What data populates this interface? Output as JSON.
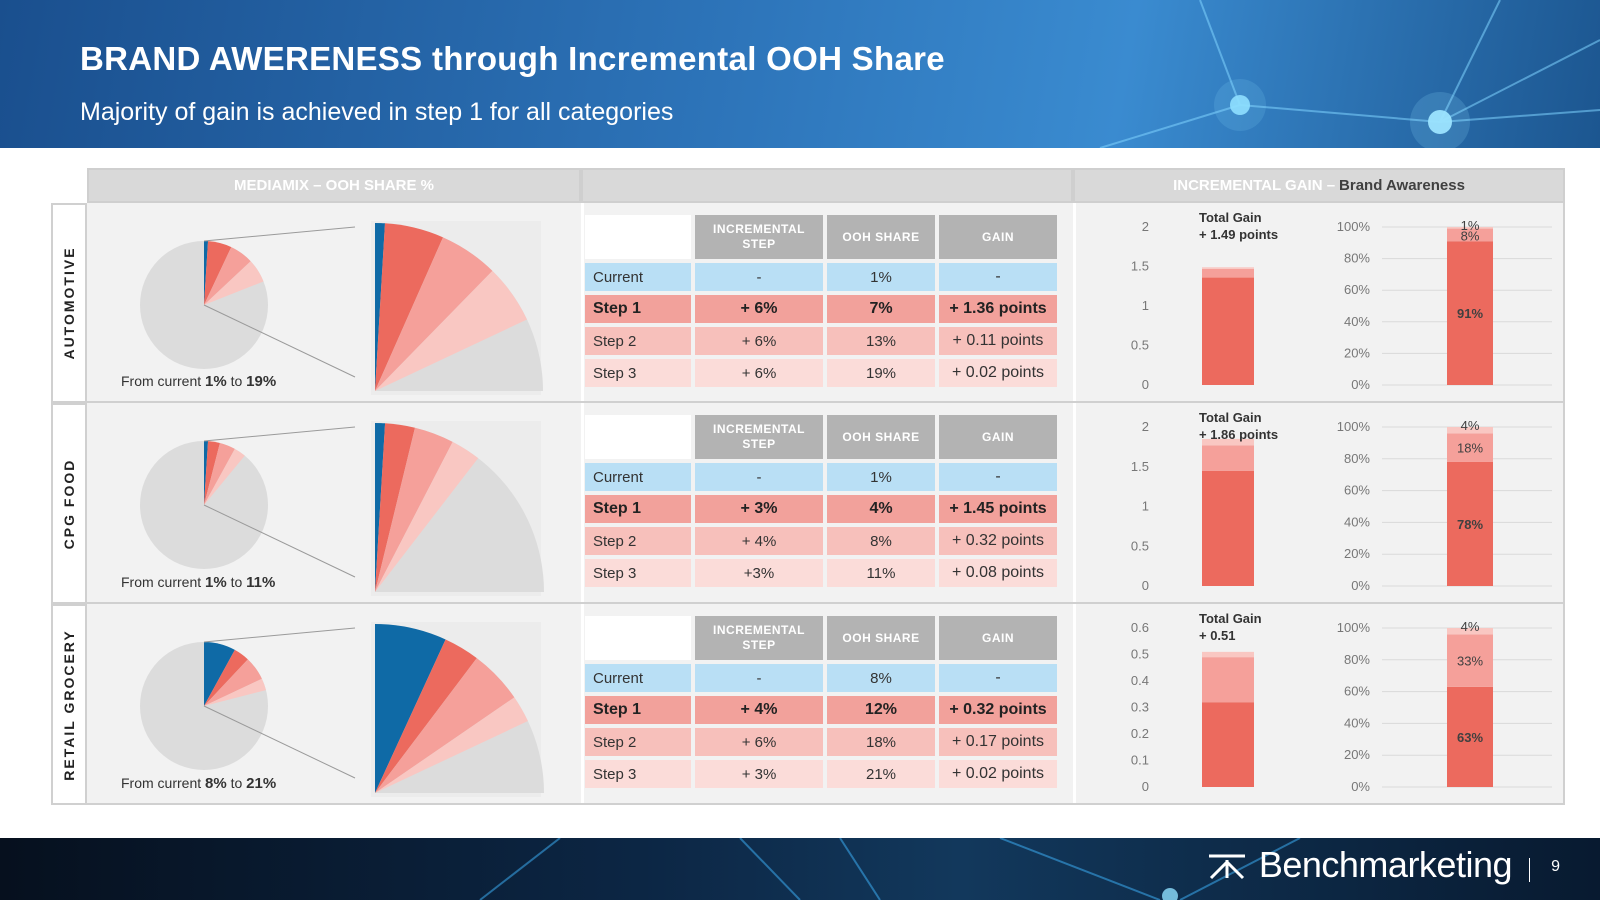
{
  "header": {
    "title": "BRAND AWERENESS through Incremental OOH Share",
    "subtitle": "Majority of gain is achieved in step 1 for all categories"
  },
  "columns": {
    "mediamix": "MEDIAMIX – OOH SHARE %",
    "gain_prefix": "INCREMENTAL GAIN –",
    "gain_suffix": "Brand Awareness"
  },
  "table_headers": [
    "INCREMENTAL STEP",
    "OOH SHARE",
    "GAIN"
  ],
  "colors": {
    "blue": "#0f6aa6",
    "red1": "#ec6a5e",
    "red2": "#f5a09a",
    "red3": "#f9c7c2",
    "gray": "#dcdcdc"
  },
  "categories": [
    {
      "label": "AUTOMOTIVE",
      "caption_pre": "From current",
      "caption_from": "1%",
      "caption_mid": "to",
      "caption_to": "19%",
      "pie_shares": [
        1,
        6,
        6,
        6
      ],
      "rows": [
        {
          "step": "Current",
          "inc": "-",
          "share": "1%",
          "gain": "-"
        },
        {
          "step": "Step 1",
          "inc": "+ 6%",
          "share": "7%",
          "gain": "+ 1.36 points"
        },
        {
          "step": "Step 2",
          "inc": "+ 6%",
          "share": "13%",
          "gain": "+ 0.11 points"
        },
        {
          "step": "Step 3",
          "inc": "+ 6%",
          "share": "19%",
          "gain": "+ 0.02 points"
        }
      ],
      "total_label": "Total Gain",
      "total_value": "+ 1.49 points",
      "chart_data": {
        "type": "bar",
        "stacked_absolute": {
          "categories": [
            "Total"
          ],
          "ylim": [
            0,
            2
          ],
          "yticks": [
            "0",
            "0.5",
            "1",
            "1.5",
            "2"
          ],
          "series": [
            {
              "values": [
                1.36
              ]
            },
            {
              "values": [
                0.11
              ]
            },
            {
              "values": [
                0.02
              ]
            }
          ]
        },
        "stacked_percent": {
          "categories": [
            "Total"
          ],
          "ylim": [
            0,
            100
          ],
          "yticks": [
            "0%",
            "20%",
            "40%",
            "60%",
            "80%",
            "100%"
          ],
          "series": [
            {
              "values": [
                91
              ],
              "label": "91%"
            },
            {
              "values": [
                8
              ],
              "label": "8%"
            },
            {
              "values": [
                1
              ],
              "label": "1%"
            }
          ]
        }
      }
    },
    {
      "label": "CPG FOOD",
      "caption_pre": "From current",
      "caption_from": "1%",
      "caption_mid": "to",
      "caption_to": "11%",
      "pie_shares": [
        1,
        3,
        4,
        3
      ],
      "rows": [
        {
          "step": "Current",
          "inc": "-",
          "share": "1%",
          "gain": "-"
        },
        {
          "step": "Step 1",
          "inc": "+ 3%",
          "share": "4%",
          "gain": "+ 1.45 points"
        },
        {
          "step": "Step 2",
          "inc": "+ 4%",
          "share": "8%",
          "gain": "+ 0.32 points"
        },
        {
          "step": "Step 3",
          "inc": "+3%",
          "share": "11%",
          "gain": "+ 0.08 points"
        }
      ],
      "total_label": "Total Gain",
      "total_value": "+ 1.86 points",
      "chart_data": {
        "type": "bar",
        "stacked_absolute": {
          "categories": [
            "Total"
          ],
          "ylim": [
            0,
            2
          ],
          "yticks": [
            "0",
            "0.5",
            "1",
            "1.5",
            "2"
          ],
          "series": [
            {
              "values": [
                1.45
              ]
            },
            {
              "values": [
                0.32
              ]
            },
            {
              "values": [
                0.08
              ]
            }
          ]
        },
        "stacked_percent": {
          "categories": [
            "Total"
          ],
          "ylim": [
            0,
            100
          ],
          "yticks": [
            "0%",
            "20%",
            "40%",
            "60%",
            "80%",
            "100%"
          ],
          "series": [
            {
              "values": [
                78
              ],
              "label": "78%"
            },
            {
              "values": [
                18
              ],
              "label": "18%"
            },
            {
              "values": [
                4
              ],
              "label": "4%"
            }
          ]
        }
      }
    },
    {
      "label": "RETAIL GROCERY",
      "caption_pre": "From current",
      "caption_from": "8%",
      "caption_mid": "to",
      "caption_to": "21%",
      "pie_shares": [
        8,
        4,
        6,
        3
      ],
      "rows": [
        {
          "step": "Current",
          "inc": "-",
          "share": "8%",
          "gain": "-"
        },
        {
          "step": "Step 1",
          "inc": "+ 4%",
          "share": "12%",
          "gain": "+ 0.32 points"
        },
        {
          "step": "Step 2",
          "inc": "+ 6%",
          "share": "18%",
          "gain": "+ 0.17 points"
        },
        {
          "step": "Step 3",
          "inc": "+ 3%",
          "share": "21%",
          "gain": "+ 0.02 points"
        }
      ],
      "total_label": "Total Gain",
      "total_value": "+ 0.51",
      "chart_data": {
        "type": "bar",
        "stacked_absolute": {
          "categories": [
            "Total"
          ],
          "ylim": [
            0,
            0.6
          ],
          "yticks": [
            "0",
            "0.1",
            "0.2",
            "0.3",
            "0.4",
            "0.5",
            "0.6"
          ],
          "series": [
            {
              "values": [
                0.32
              ]
            },
            {
              "values": [
                0.17
              ]
            },
            {
              "values": [
                0.02
              ]
            }
          ]
        },
        "stacked_percent": {
          "categories": [
            "Total"
          ],
          "ylim": [
            0,
            100
          ],
          "yticks": [
            "0%",
            "20%",
            "40%",
            "60%",
            "80%",
            "100%"
          ],
          "series": [
            {
              "values": [
                63
              ],
              "label": "63%"
            },
            {
              "values": [
                33
              ],
              "label": "33%"
            },
            {
              "values": [
                4
              ],
              "label": "4%"
            }
          ]
        }
      }
    }
  ],
  "footer": {
    "brand": "Benchmarketing",
    "page": "9"
  }
}
